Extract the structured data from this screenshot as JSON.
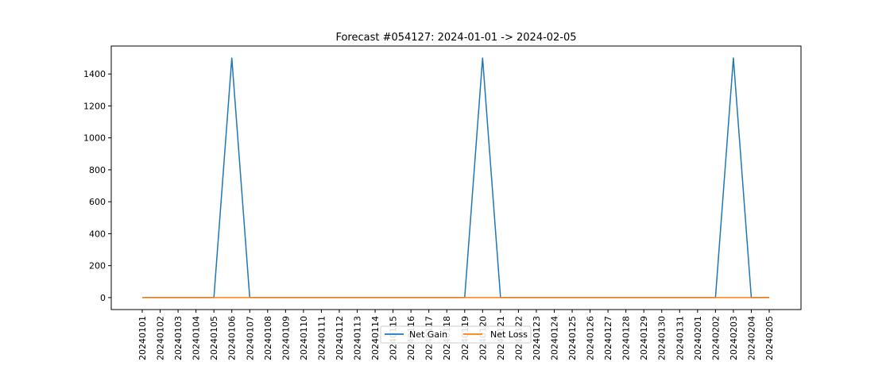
{
  "chart_data": {
    "type": "line",
    "title": "Forecast #054127: 2024-01-01 -> 2024-02-05",
    "xlabel": "",
    "ylabel": "",
    "x": [
      "20240101",
      "20240102",
      "20240103",
      "20240104",
      "20240105",
      "20240106",
      "20240107",
      "20240108",
      "20240109",
      "20240110",
      "20240111",
      "20240112",
      "20240113",
      "20240114",
      "20240115",
      "20240116",
      "20240117",
      "20240118",
      "20240119",
      "20240120",
      "20240121",
      "20240122",
      "20240123",
      "20240124",
      "20240125",
      "20240126",
      "20240127",
      "20240128",
      "20240129",
      "20240130",
      "20240131",
      "20240201",
      "20240202",
      "20240203",
      "20240204",
      "20240205"
    ],
    "yticks": [
      0,
      200,
      400,
      600,
      800,
      1000,
      1200,
      1400
    ],
    "ylim": [
      -75,
      1575
    ],
    "grid": false,
    "legend_position": "bottom-center",
    "series": [
      {
        "name": "Net Gain",
        "color": "#1f77b4",
        "values": [
          0,
          0,
          0,
          0,
          0,
          1500,
          0,
          0,
          0,
          0,
          0,
          0,
          0,
          0,
          0,
          0,
          0,
          0,
          0,
          1500,
          0,
          0,
          0,
          0,
          0,
          0,
          0,
          0,
          0,
          0,
          0,
          0,
          0,
          1500,
          0,
          0
        ]
      },
      {
        "name": "Net Loss",
        "color": "#ff7f0e",
        "values": [
          0,
          0,
          0,
          0,
          0,
          0,
          0,
          0,
          0,
          0,
          0,
          0,
          0,
          0,
          0,
          0,
          0,
          0,
          0,
          0,
          0,
          0,
          0,
          0,
          0,
          0,
          0,
          0,
          0,
          0,
          0,
          0,
          0,
          0,
          0,
          0
        ]
      }
    ]
  }
}
